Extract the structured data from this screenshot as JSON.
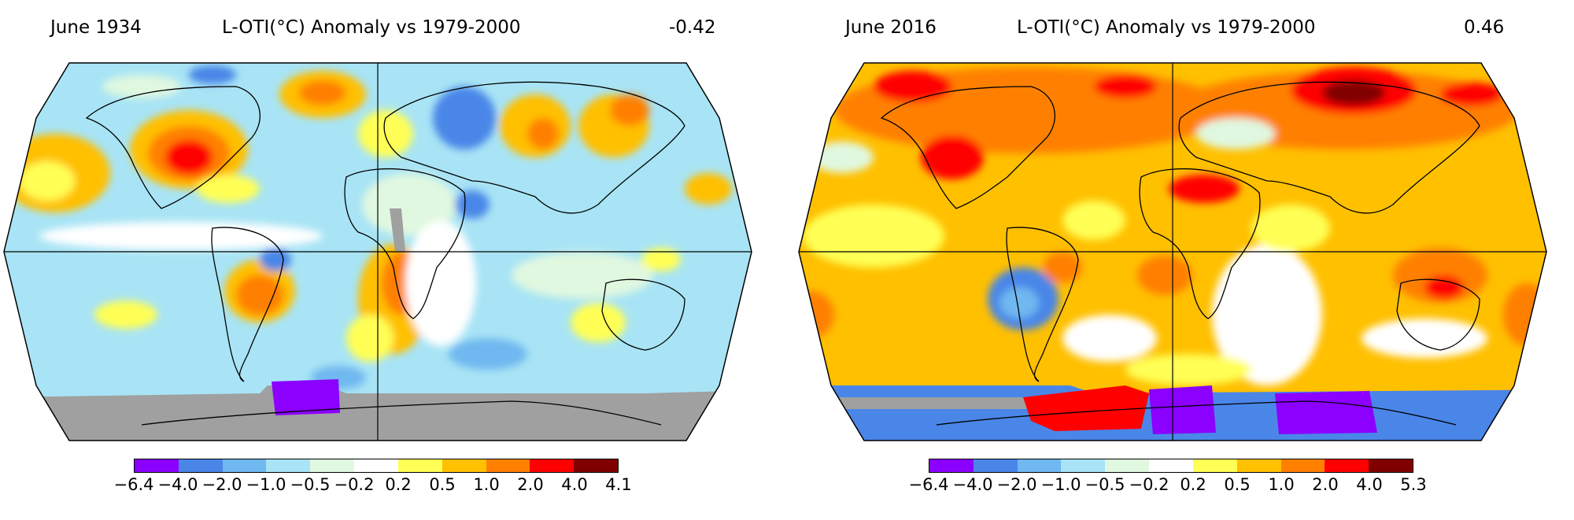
{
  "colorbar_colors": [
    "#8b00ff",
    "#4a86e8",
    "#6fb8f0",
    "#a8e4f5",
    "#e0f8e0",
    "#ffffff",
    "#ffff55",
    "#ffc000",
    "#ff8000",
    "#ff0000",
    "#800000"
  ],
  "panels": [
    {
      "date": "June 1934",
      "title": "L-OTI(°C) Anomaly vs 1979-2000",
      "value": "-0.42",
      "colorbar_ticks": [
        "−6.4",
        "−4.0",
        "−2.0",
        "−1.0",
        "−0.5",
        "−0.2",
        "0.2",
        "0.5",
        "1.0",
        "2.0",
        "4.0",
        "4.1"
      ]
    },
    {
      "date": "June 2016",
      "title": "L-OTI(°C) Anomaly vs 1979-2000",
      "value": "0.46",
      "colorbar_ticks": [
        "−6.4",
        "−4.0",
        "−2.0",
        "−1.0",
        "−0.5",
        "−0.2",
        "0.2",
        "0.5",
        "1.0",
        "2.0",
        "4.0",
        "5.3"
      ]
    }
  ]
}
